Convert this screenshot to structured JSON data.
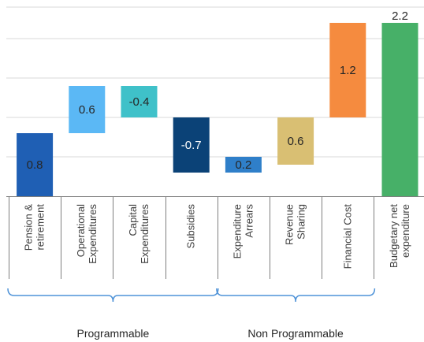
{
  "chart_data": {
    "type": "bar",
    "subtype": "waterfall",
    "title": "",
    "xlabel": "",
    "ylabel": "",
    "ylim": [
      0,
      2.4
    ],
    "grid": true,
    "legend": "none",
    "categories": [
      [
        "Pension &",
        "retirement"
      ],
      [
        "Operational",
        "Expenditures"
      ],
      [
        "Capital",
        "Expenditures"
      ],
      [
        "Subsidies"
      ],
      [
        "Expenditure",
        "Arrears"
      ],
      [
        "Revenue",
        "Sharing"
      ],
      [
        "Financial Cost"
      ],
      [
        "Budgetary net",
        "expenditure"
      ]
    ],
    "bars": [
      {
        "start": 0.0,
        "end": 0.8,
        "label": "0.8",
        "color": "#1f5fb4"
      },
      {
        "start": 0.8,
        "end": 1.4,
        "label": "0.6",
        "color": "#5bb8f5"
      },
      {
        "start": 1.4,
        "end": 1.0,
        "label": "-0.4",
        "color": "#3fc1c9"
      },
      {
        "start": 1.0,
        "end": 0.3,
        "label": "-0.7",
        "color": "#0b4277"
      },
      {
        "start": 0.3,
        "end": 0.5,
        "label": "0.2",
        "color": "#2f7fc9"
      },
      {
        "start": 0.4,
        "end": 1.0,
        "label": "0.6",
        "color": "#d9bf73"
      },
      {
        "start": 1.0,
        "end": 2.2,
        "label": "1.2",
        "color": "#f58b3f"
      },
      {
        "start": 0.0,
        "end": 2.2,
        "label": "2.2",
        "color": "#47b068"
      }
    ],
    "groups": [
      {
        "label": "Programmable",
        "from": 0,
        "to": 3,
        "color": "#4f93d8"
      },
      {
        "label": "Non Programmable",
        "from": 4,
        "to": 6,
        "color": "#4f93d8"
      }
    ]
  }
}
